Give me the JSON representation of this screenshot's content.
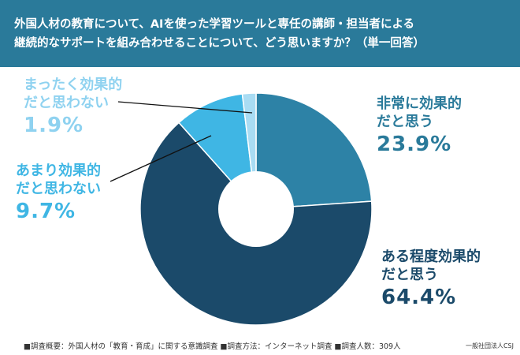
{
  "header": {
    "line1": "外国人材の教育について、AIを使った学習ツールと専任の講師・担当者による",
    "line2": "継続的なサポートを組み合わせることについて、どう思いますか？（単一回答）"
  },
  "chart_data": {
    "type": "pie",
    "donut": true,
    "slices": [
      {
        "label_line1": "非常に効果的",
        "label_line2": "だと思う",
        "value": 23.9,
        "display": "23.9%",
        "color": "#2d82a6",
        "label_color": "#2a7a9a"
      },
      {
        "label_line1": "ある程度効果的",
        "label_line2": "だと思う",
        "value": 64.4,
        "display": "64.4%",
        "color": "#1b4a6a",
        "label_color": "#1b4a6a"
      },
      {
        "label_line1": "あまり効果的",
        "label_line2": "だと思わない",
        "value": 9.7,
        "display": "9.7%",
        "color": "#3fb6e4",
        "label_color": "#3fb6e4"
      },
      {
        "label_line1": "まったく効果的",
        "label_line2": "だと思わない",
        "value": 1.9,
        "display": "1.9%",
        "color": "#a9dcf3",
        "label_color": "#8fd2f0"
      }
    ]
  },
  "footer": {
    "text": "■調査概要：外国人材の「教育・育成」に関する意識調査 ■調査方法：インターネット調査 ■調査人数：309人",
    "credit": "一般社団法人CSJ"
  }
}
